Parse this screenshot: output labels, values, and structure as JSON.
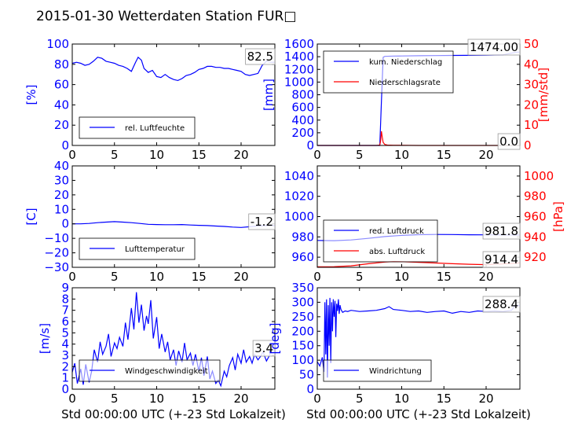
{
  "title": "2015-01-30 Wetterdaten Station FUR□",
  "xlabel": "Std 00:00:00 UTC (+-23 Std Lokalzeit)",
  "colors": {
    "primary": "#0000ff",
    "secondary": "#ff0000",
    "frame": "#000000"
  },
  "chart_data": [
    {
      "id": "humidity",
      "type": "line",
      "xlim": [
        0,
        24
      ],
      "ylim": [
        0,
        100
      ],
      "xticks": [
        "0",
        "5",
        "10",
        "15",
        "20"
      ],
      "yticks": [
        "0",
        "20",
        "40",
        "60",
        "80",
        "100"
      ],
      "ylabel": "[%]",
      "annotation": "82.5",
      "grid": false,
      "legend_position": "lower-left",
      "series": [
        {
          "name": "rel. Luftfeuchte",
          "color": "#0000ff",
          "x": [
            0,
            0.5,
            1,
            1.5,
            2,
            2.5,
            3,
            3.5,
            4,
            4.5,
            5,
            5.5,
            6,
            6.5,
            7,
            7.5,
            7.8,
            8.2,
            8.5,
            9,
            9.5,
            10,
            10.5,
            11,
            11.5,
            12,
            12.5,
            13,
            13.5,
            14,
            14.5,
            15,
            15.5,
            16,
            16.5,
            17,
            17.5,
            18,
            18.5,
            19,
            19.5,
            20,
            20.5,
            21,
            21.5,
            22,
            22.5,
            23,
            23.5,
            24
          ],
          "y": [
            81,
            82,
            81,
            79,
            80,
            83,
            87,
            86,
            83,
            82,
            81,
            79,
            78,
            76,
            73,
            82,
            87,
            84,
            76,
            72,
            74,
            68,
            67,
            70,
            67,
            65,
            64,
            66,
            69,
            70,
            72,
            75,
            76,
            78,
            78,
            77,
            77,
            76,
            76,
            75,
            74,
            73,
            70,
            69,
            70,
            71,
            79,
            83,
            82,
            82
          ]
        }
      ]
    },
    {
      "id": "precip",
      "type": "line",
      "xlim": [
        0,
        24
      ],
      "ylim": [
        0,
        1600
      ],
      "y2lim": [
        0,
        50
      ],
      "xticks": [
        "0",
        "5",
        "10",
        "15",
        "20"
      ],
      "yticks": [
        "0",
        "200",
        "400",
        "600",
        "800",
        "1000",
        "1200",
        "1400",
        "1600"
      ],
      "y2ticks": [
        "0",
        "10",
        "20",
        "30",
        "40",
        "50"
      ],
      "ylabel": "[mm]",
      "y2label": "[mm/std]",
      "annotation": "1474.00",
      "annotation2": "0.0",
      "grid": false,
      "legend_position": "upper-left",
      "series": [
        {
          "name": "kum. Niederschlag",
          "color": "#0000ff",
          "axis": "left",
          "x": [
            0,
            7,
            7.4,
            7.6,
            7.8,
            8,
            9,
            10,
            12,
            14,
            16,
            18,
            20,
            22,
            23.5,
            24
          ],
          "y": [
            0,
            0,
            0,
            700,
            1390,
            1405,
            1410,
            1412,
            1415,
            1418,
            1420,
            1422,
            1425,
            1430,
            1470,
            1474
          ]
        },
        {
          "name": "Niederschlagsrate",
          "color": "#ff0000",
          "axis": "right",
          "x": [
            0,
            7,
            7.4,
            7.5,
            7.6,
            7.7,
            7.8,
            8,
            8.3,
            9,
            12,
            24
          ],
          "y": [
            0,
            0,
            0.2,
            2,
            7,
            4,
            1.5,
            0.5,
            0.2,
            0.1,
            0,
            0
          ]
        }
      ]
    },
    {
      "id": "temperature",
      "type": "line",
      "xlim": [
        0,
        24
      ],
      "ylim": [
        -30,
        40
      ],
      "xticks": [
        "0",
        "5",
        "10",
        "15",
        "20"
      ],
      "yticks": [
        "−30",
        "−20",
        "−10",
        "0",
        "10",
        "20",
        "30",
        "40"
      ],
      "ylabel": "[C]",
      "annotation": "-1.2",
      "grid": false,
      "legend_position": "lower-left",
      "series": [
        {
          "name": "Lufttemperatur",
          "color": "#0000ff",
          "x": [
            0,
            1,
            2,
            3,
            4,
            5,
            6,
            7,
            8,
            9,
            10,
            11,
            12,
            13,
            14,
            15,
            16,
            17,
            18,
            19,
            20,
            21,
            22,
            23,
            24
          ],
          "y": [
            0,
            0,
            0.3,
            0.8,
            1.2,
            1.5,
            1.2,
            0.8,
            0.3,
            -0.3,
            -0.5,
            -0.6,
            -0.6,
            -0.5,
            -0.8,
            -1.0,
            -1.2,
            -1.5,
            -1.8,
            -2.2,
            -2.5,
            -2.0,
            -1.5,
            -1.2,
            -1.2
          ]
        }
      ]
    },
    {
      "id": "pressure",
      "type": "line",
      "xlim": [
        0,
        24
      ],
      "ylim": [
        950,
        1050
      ],
      "y2lim": [
        910,
        1010
      ],
      "xticks": [
        "0",
        "5",
        "10",
        "15",
        "20"
      ],
      "yticks": [
        "960",
        "980",
        "1000",
        "1020",
        "1040"
      ],
      "y2ticks": [
        "920",
        "940",
        "960",
        "980",
        "1000"
      ],
      "ylabel": "",
      "y2label": "[hPa]",
      "annotation": "981.8",
      "annotation2": "914.4",
      "grid": false,
      "legend_position": "lower-left",
      "series": [
        {
          "name": "red. Luftdruck",
          "color": "#0000ff",
          "axis": "left",
          "x": [
            0,
            2,
            4,
            6,
            8,
            10,
            12,
            14,
            16,
            18,
            20,
            22,
            24
          ],
          "y": [
            976.5,
            976.3,
            977,
            978.5,
            980.3,
            981.5,
            982.2,
            982.4,
            982.3,
            982.1,
            982,
            981.9,
            981.8
          ]
        },
        {
          "name": "abs. Luftdruck",
          "color": "#ff0000",
          "axis": "right",
          "x": [
            0,
            2,
            4,
            6,
            8,
            9,
            10,
            12,
            14,
            16,
            18,
            20,
            22,
            24
          ],
          "y": [
            910.5,
            910.6,
            911.5,
            913.5,
            915.2,
            915.7,
            915.6,
            915.0,
            914.3,
            913.6,
            913.0,
            912.6,
            913.3,
            914.4
          ]
        }
      ]
    },
    {
      "id": "windspeed",
      "type": "line",
      "xlim": [
        0,
        24
      ],
      "ylim": [
        0,
        9
      ],
      "xticks": [
        "0",
        "5",
        "10",
        "15",
        "20"
      ],
      "yticks": [
        "0",
        "1",
        "2",
        "3",
        "4",
        "5",
        "6",
        "7",
        "8",
        "9"
      ],
      "ylabel": "[m/s]",
      "annotation": "3.4",
      "grid": false,
      "legend_position": "lower-left",
      "series": [
        {
          "name": "Windgeschwindigkeit",
          "color": "#0000ff",
          "x": [
            0,
            0.3,
            0.6,
            1,
            1.3,
            1.6,
            2,
            2.3,
            2.6,
            3,
            3.3,
            3.6,
            4,
            4.3,
            4.6,
            5,
            5.3,
            5.6,
            6,
            6.3,
            6.6,
            7,
            7.3,
            7.6,
            7.9,
            8.2,
            8.5,
            8.8,
            9,
            9.3,
            9.6,
            10,
            10.3,
            10.6,
            11,
            11.3,
            11.6,
            12,
            12.3,
            12.6,
            13,
            13.3,
            13.6,
            14,
            14.3,
            14.6,
            15,
            15.3,
            15.6,
            16,
            16.3,
            16.6,
            17,
            17.3,
            17.6,
            18,
            18.3,
            18.6,
            19,
            19.3,
            19.6,
            20,
            20.3,
            20.6,
            21,
            21.3,
            21.6,
            22,
            22.3,
            22.6,
            23,
            23.3,
            23.6,
            24
          ],
          "y": [
            1.5,
            2.3,
            0.5,
            1.8,
            0.4,
            2.2,
            0.6,
            1.6,
            3.5,
            2.4,
            4.2,
            3.1,
            3.8,
            4.9,
            2.9,
            4.1,
            3.6,
            4.6,
            3.8,
            5.9,
            4.4,
            7.2,
            5.3,
            8.6,
            5.9,
            7.5,
            5.2,
            6.5,
            5.8,
            7.9,
            4.5,
            6.4,
            3.6,
            4.9,
            3.3,
            4.2,
            2.6,
            3.5,
            2.1,
            3.4,
            2.4,
            4.1,
            2.6,
            3.2,
            2.1,
            3.1,
            1.6,
            2.8,
            1.2,
            2.9,
            0.9,
            1.6,
            0.5,
            0.8,
            0.3,
            1.6,
            1.1,
            2.1,
            2.8,
            1.7,
            3.1,
            2.3,
            3.5,
            2.4,
            2.9,
            2.3,
            3.1,
            2.6,
            2.9,
            3.3,
            2.5,
            2.9,
            3.6,
            3.4
          ]
        }
      ]
    },
    {
      "id": "winddir",
      "type": "line",
      "xlim": [
        0,
        24
      ],
      "ylim": [
        0,
        350
      ],
      "xticks": [
        "0",
        "5",
        "10",
        "15",
        "20"
      ],
      "yticks": [
        "0",
        "50",
        "100",
        "150",
        "200",
        "250",
        "300",
        "350"
      ],
      "ylabel": "[deg]",
      "annotation": "288.4",
      "grid": false,
      "legend_position": "lower-left",
      "series": [
        {
          "name": "Windrichtung",
          "color": "#0000ff",
          "x": [
            0,
            0.3,
            0.6,
            0.8,
            0.9,
            1.0,
            1.1,
            1.2,
            1.3,
            1.4,
            1.5,
            1.6,
            1.7,
            1.8,
            1.9,
            2.0,
            2.1,
            2.2,
            2.3,
            2.4,
            2.5,
            2.6,
            2.7,
            2.8,
            3,
            3.3,
            3.6,
            4,
            5,
            6,
            7,
            8,
            8.5,
            9,
            10,
            11,
            12,
            13,
            14,
            15,
            16,
            17,
            18,
            19,
            20,
            21,
            22,
            23,
            23.5,
            24
          ],
          "y": [
            95,
            80,
            110,
            60,
            300,
            120,
            310,
            40,
            290,
            150,
            315,
            90,
            300,
            200,
            310,
            250,
            305,
            180,
            295,
            270,
            310,
            260,
            290,
            275,
            265,
            270,
            268,
            272,
            268,
            270,
            272,
            278,
            285,
            275,
            272,
            268,
            270,
            265,
            268,
            270,
            262,
            268,
            265,
            270,
            268,
            270,
            268,
            272,
            290,
            288
          ]
        }
      ]
    }
  ]
}
